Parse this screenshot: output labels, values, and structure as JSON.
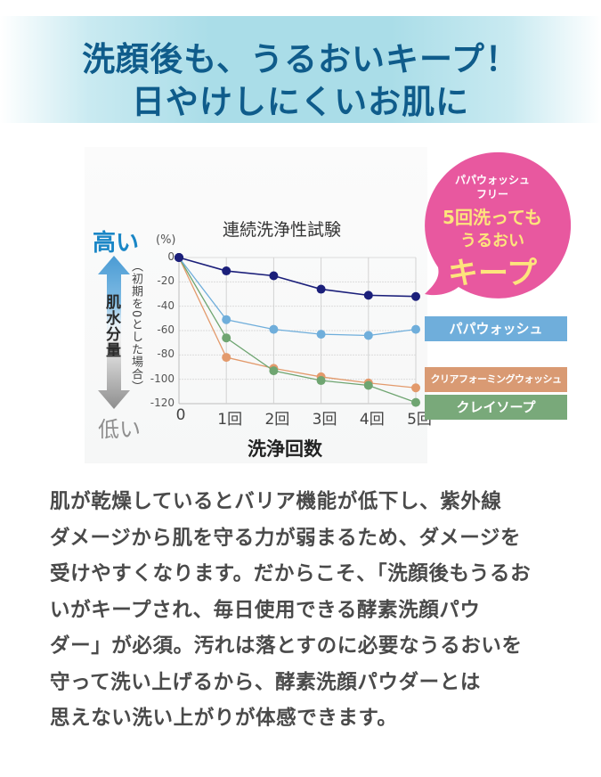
{
  "header": {
    "line1": "洗顔後も、うるおいキープ！",
    "line2": "日やけしにくいお肌に"
  },
  "chart_labels": {
    "high": "高い",
    "low": "低い",
    "moisture": "肌水分量",
    "note": "（初期を0とした場合）",
    "percent_unit": "(%)"
  },
  "bubble": {
    "line1": "パパウォッシュ",
    "line2": "フリー",
    "line3": "5回洗っても",
    "line4": "うるおい",
    "line5": "キープ",
    "color": "#e8589f",
    "text_color": "#fde47c"
  },
  "legend": [
    {
      "label": "パパウォッシュ",
      "color": "#6faedb"
    },
    {
      "label": "クリアフォーミングウォッシュ",
      "color": "#d99a73"
    },
    {
      "label": "クレイソープ",
      "color": "#79a97a"
    }
  ],
  "chart_data": {
    "type": "line",
    "title": "連続洗浄性試験",
    "xlabel": "洗浄回数",
    "ylabel": "肌水分量（初期を0とした場合）(%)",
    "categories": [
      "0",
      "1回",
      "2回",
      "3回",
      "4回",
      "5回"
    ],
    "yticks": [
      "0",
      "-20",
      "-40",
      "-60",
      "-80",
      "-100",
      "-120"
    ],
    "ylim": [
      -120,
      0
    ],
    "grid": true,
    "series": [
      {
        "name": "パパウォッシュフリー",
        "color": "#1b1f7a",
        "values": [
          0,
          -11,
          -15,
          -26,
          -31,
          -32
        ]
      },
      {
        "name": "パパウォッシュ",
        "color": "#6faedb",
        "values": [
          0,
          -51,
          -59,
          -63,
          -64,
          -59
        ]
      },
      {
        "name": "クリアフォーミングウォッシュ",
        "color": "#e39a6c",
        "values": [
          0,
          -82,
          -91,
          -98,
          -103,
          -107
        ]
      },
      {
        "name": "クレイソープ",
        "color": "#6fa571",
        "values": [
          0,
          -66,
          -93,
          -101,
          -105,
          -119
        ]
      }
    ]
  },
  "body": {
    "lines": [
      "肌が乾燥しているとバリア機能が低下し、紫外線",
      "ダメージから肌を守る力が弱まるため、ダメージを",
      "受けやすくなります。だからこそ、「洗顔後もうるお",
      "いがキープされ、毎日使用できる酵素洗顔パウ",
      "ダー」が必須。汚れは落とすのに必要なうるおいを",
      "守って洗い上げるから、酵素洗顔パウダーとは",
      "思えない洗い上がりが体感できます。"
    ]
  }
}
